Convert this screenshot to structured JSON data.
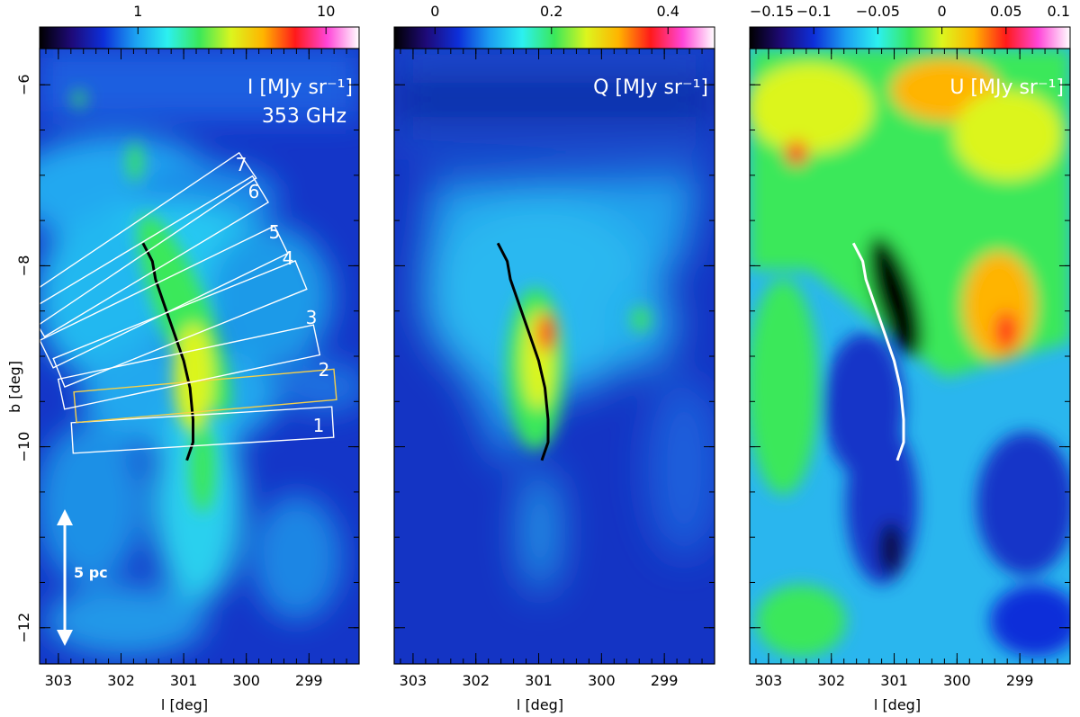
{
  "chart_data": [
    {
      "type": "heatmap",
      "quantity": "I",
      "label": "I [MJy sr⁻¹]",
      "label_line2": "353 GHz",
      "colorbar": {
        "scale": "log",
        "range": [
          0.3,
          15
        ],
        "ticks": [
          1,
          10
        ],
        "tick_labels": [
          "1",
          "10"
        ]
      },
      "xlabel": "l [deg]",
      "ylabel": "b [deg]",
      "xlim": [
        303.3,
        298.2
      ],
      "ylim": [
        -12.4,
        -5.6
      ],
      "x_ticks": [
        303,
        302,
        301,
        300,
        299
      ],
      "y_ticks": [
        -6,
        -8,
        -10,
        -12
      ],
      "filament_color": "#000000",
      "scale_bar_label": "5 pc",
      "box_labels": [
        "1",
        "2",
        "3",
        "4",
        "5",
        "6",
        "7"
      ]
    },
    {
      "type": "heatmap",
      "quantity": "Q",
      "label": "Q [MJy sr⁻¹]",
      "colorbar": {
        "scale": "linear",
        "range": [
          -0.07,
          0.48
        ],
        "ticks": [
          0,
          0.2,
          0.4
        ],
        "tick_labels": [
          "0",
          "0.2",
          "0.4"
        ]
      },
      "xlabel": "l [deg]",
      "xlim": [
        303.3,
        298.2
      ],
      "ylim": [
        -12.4,
        -5.6
      ],
      "x_ticks": [
        303,
        302,
        301,
        300,
        299
      ],
      "filament_color": "#000000"
    },
    {
      "type": "heatmap",
      "quantity": "U",
      "label": "U [MJy sr⁻¹]",
      "colorbar": {
        "scale": "linear",
        "range": [
          -0.15,
          0.1
        ],
        "ticks": [
          -0.15,
          -0.1,
          -0.05,
          0,
          0.05,
          0.1
        ],
        "tick_labels": [
          "−0.15",
          "−0.1",
          "−0.05",
          "0",
          "0.05",
          "0.1"
        ]
      },
      "xlabel": "l [deg]",
      "xlim": [
        303.3,
        298.2
      ],
      "ylim": [
        -12.4,
        -5.6
      ],
      "x_ticks": [
        303,
        302,
        301,
        300,
        299
      ],
      "filament_color": "#ffffff"
    }
  ],
  "filament_ridge": [
    [
      301.65,
      -7.75
    ],
    [
      301.5,
      -7.95
    ],
    [
      301.45,
      -8.15
    ],
    [
      301.3,
      -8.45
    ],
    [
      301.15,
      -8.75
    ],
    [
      301.0,
      -9.05
    ],
    [
      300.9,
      -9.35
    ],
    [
      300.85,
      -9.7
    ],
    [
      300.85,
      -9.95
    ],
    [
      300.95,
      -10.15
    ]
  ],
  "colormap": [
    "#000000",
    "#1e0a78",
    "#0d2fd9",
    "#1ca0f2",
    "#2cf0f0",
    "#3ae85a",
    "#dcf51e",
    "#ffb400",
    "#ff1a1a",
    "#ff45d8",
    "#ffffff"
  ]
}
